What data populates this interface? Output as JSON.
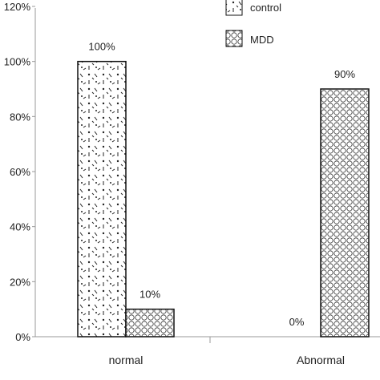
{
  "chart_data": {
    "type": "bar",
    "categories": [
      "normal",
      "Abnormal"
    ],
    "series": [
      {
        "name": "control",
        "values": [
          100,
          0
        ],
        "labels": [
          "100%",
          "0%"
        ],
        "pattern": "dots-dashes"
      },
      {
        "name": "MDD",
        "values": [
          10,
          90
        ],
        "labels": [
          "10%",
          "90%"
        ],
        "pattern": "circles"
      }
    ],
    "ylim": [
      0,
      120
    ],
    "ytick_values": [
      0,
      20,
      40,
      60,
      80,
      100,
      120
    ],
    "ytick_labels": [
      "0%",
      "20%",
      "40%",
      "60%",
      "80%",
      "100%",
      "120%"
    ],
    "legend": "top-right",
    "grid": false,
    "colors": {
      "bar_fill": "#ffffff",
      "bar_stroke": "#111111",
      "axis": "#999999",
      "pattern_ink": "#222222"
    }
  }
}
